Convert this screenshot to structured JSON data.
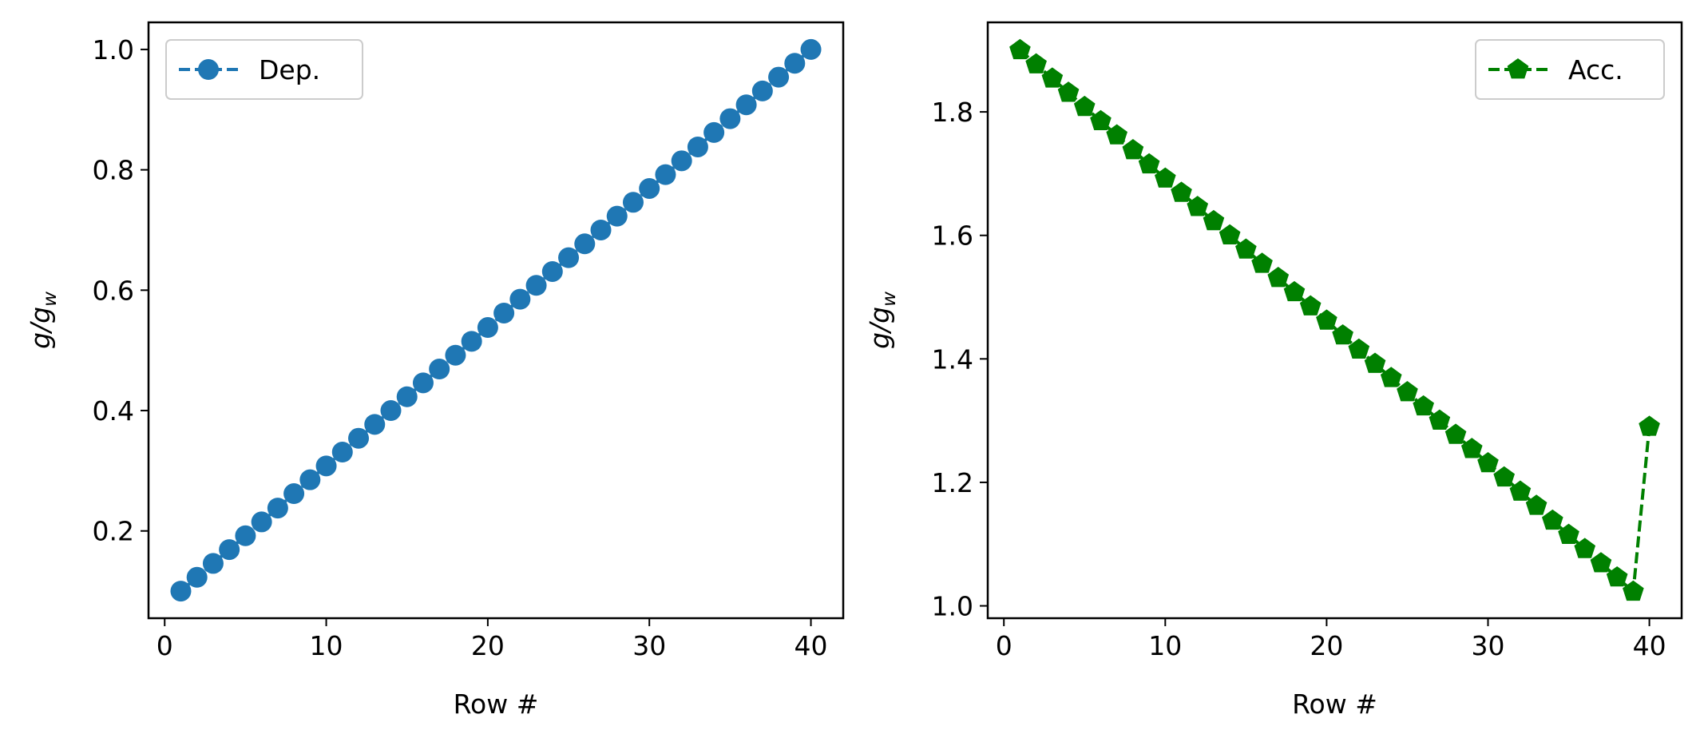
{
  "chart_data": [
    {
      "type": "line",
      "xlabel": "Row #",
      "ylabel_base": "g/g",
      "ylabel_sub": "w",
      "xlim": [
        -1,
        42
      ],
      "ylim": [
        0.055,
        1.045
      ],
      "xticks": [
        0,
        10,
        20,
        30,
        40
      ],
      "xtick_labels": [
        "0",
        "10",
        "20",
        "30",
        "40"
      ],
      "yticks": [
        0.2,
        0.4,
        0.6,
        0.8,
        1.0
      ],
      "ytick_labels": [
        "0.2",
        "0.4",
        "0.6",
        "0.8",
        "1.0"
      ],
      "legend_placement": "upper-left",
      "grid": false,
      "series": [
        {
          "name": "Dep.",
          "color": "#1f77b4",
          "marker": "circle",
          "linestyle": "dashed",
          "x": [
            1,
            2,
            3,
            4,
            5,
            6,
            7,
            8,
            9,
            10,
            11,
            12,
            13,
            14,
            15,
            16,
            17,
            18,
            19,
            20,
            21,
            22,
            23,
            24,
            25,
            26,
            27,
            28,
            29,
            30,
            31,
            32,
            33,
            34,
            35,
            36,
            37,
            38,
            39,
            40
          ],
          "y": [
            0.1,
            0.123,
            0.146,
            0.169,
            0.192,
            0.215,
            0.238,
            0.262,
            0.285,
            0.308,
            0.331,
            0.354,
            0.377,
            0.4,
            0.423,
            0.446,
            0.469,
            0.492,
            0.515,
            0.538,
            0.562,
            0.585,
            0.608,
            0.631,
            0.654,
            0.677,
            0.7,
            0.723,
            0.746,
            0.769,
            0.792,
            0.815,
            0.838,
            0.862,
            0.885,
            0.908,
            0.931,
            0.954,
            0.977,
            1.0
          ]
        }
      ]
    },
    {
      "type": "line",
      "xlabel": "Row #",
      "ylabel_base": "g/g",
      "ylabel_sub": "w",
      "xlim": [
        -1,
        42
      ],
      "ylim": [
        0.98,
        1.945
      ],
      "xticks": [
        0,
        10,
        20,
        30,
        40
      ],
      "xtick_labels": [
        "0",
        "10",
        "20",
        "30",
        "40"
      ],
      "yticks": [
        1.0,
        1.2,
        1.4,
        1.6,
        1.8
      ],
      "ytick_labels": [
        "1.0",
        "1.2",
        "1.4",
        "1.6",
        "1.8"
      ],
      "legend_placement": "upper-right",
      "grid": false,
      "series": [
        {
          "name": "Acc.",
          "color": "#008000",
          "marker": "pentagon",
          "linestyle": "dashed",
          "x": [
            1,
            2,
            3,
            4,
            5,
            6,
            7,
            8,
            9,
            10,
            11,
            12,
            13,
            14,
            15,
            16,
            17,
            18,
            19,
            20,
            21,
            22,
            23,
            24,
            25,
            26,
            27,
            28,
            29,
            30,
            31,
            32,
            33,
            34,
            35,
            36,
            37,
            38,
            39,
            40
          ],
          "y": [
            1.9,
            1.877,
            1.854,
            1.831,
            1.808,
            1.785,
            1.762,
            1.738,
            1.715,
            1.692,
            1.669,
            1.646,
            1.623,
            1.6,
            1.577,
            1.554,
            1.531,
            1.508,
            1.485,
            1.462,
            1.438,
            1.415,
            1.392,
            1.369,
            1.346,
            1.323,
            1.3,
            1.277,
            1.254,
            1.231,
            1.208,
            1.185,
            1.162,
            1.138,
            1.115,
            1.092,
            1.069,
            1.046,
            1.023,
            1.29
          ]
        }
      ]
    }
  ]
}
